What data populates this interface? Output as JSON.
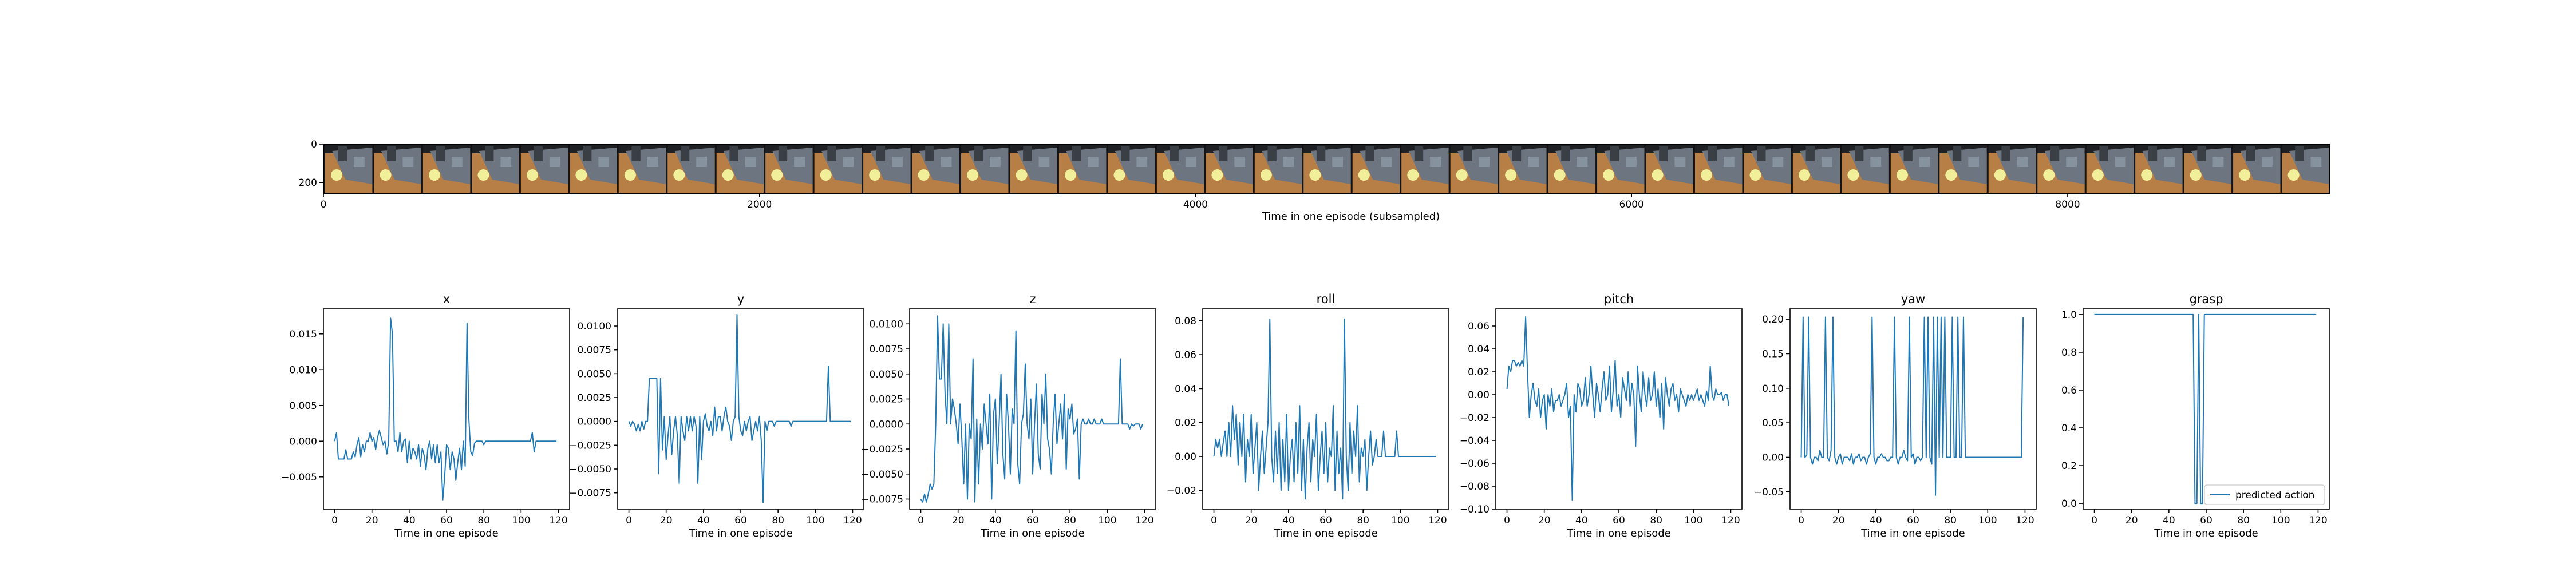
{
  "strip": {
    "xlabel": "Time in one episode (subsampled)",
    "xticks": [
      0,
      2000,
      4000,
      6000,
      8000
    ],
    "yticks": [
      0,
      200
    ],
    "xlim": [
      0,
      9200
    ],
    "ylim": [
      0,
      256
    ],
    "frame_count": 41,
    "colors": {
      "floor": "#b77e46",
      "wall": "#6c7580",
      "dark": "#1e2024",
      "ball": "#f1ef9a"
    }
  },
  "chart_data": [
    {
      "type": "line",
      "title": "x",
      "xlabel": "Time in one episode",
      "xticks": [
        0,
        20,
        40,
        60,
        80,
        100,
        120
      ],
      "yticks": [
        -0.005,
        0.0,
        0.005,
        0.01,
        0.015
      ],
      "ytick_labels": [
        "−0.005",
        "0.000",
        "0.005",
        "0.010",
        "0.015"
      ],
      "xlim": [
        -6,
        126
      ],
      "ylim": [
        -0.0095,
        0.0185
      ],
      "y": [
        0.0,
        0.0012,
        -0.0025,
        -0.0025,
        -0.0025,
        -0.0025,
        -0.0012,
        -0.0025,
        -0.0025,
        -0.0025,
        -0.0015,
        -0.0022,
        -0.0005,
        0.0005,
        -0.0022,
        -0.0005,
        -0.0015,
        0.0,
        0.0,
        0.0012,
        0.0,
        0.0005,
        -0.0012,
        0.0005,
        0.0015,
        0.0005,
        -0.0005,
        0.0,
        -0.0018,
        0.0,
        0.0172,
        0.015,
        0.0,
        0.0,
        -0.0015,
        0.0012,
        -0.0015,
        0.0,
        0.0003,
        -0.003,
        0.0,
        -0.0025,
        -0.001,
        -0.0015,
        -0.0025,
        -0.0005,
        -0.0035,
        -0.001,
        -0.002,
        -0.004,
        -0.001,
        0.0,
        -0.0025,
        -0.0005,
        -0.003,
        -0.0005,
        -0.003,
        -0.0015,
        -0.0082,
        -0.005,
        -0.0005,
        -0.001,
        -0.004,
        -0.0015,
        -0.0025,
        -0.0055,
        -0.003,
        -0.001,
        -0.004,
        0.0,
        -0.0035,
        0.0165,
        0.003,
        -0.0015,
        -0.002,
        -0.0003,
        0.0,
        0.0,
        0.0,
        0.0,
        -0.0005,
        0.0,
        0.0,
        0.0,
        0.0,
        0.0,
        0.0,
        0.0,
        0.0,
        0.0,
        0.0,
        0.0,
        0.0,
        0.0,
        0.0,
        0.0,
        0.0,
        0.0,
        0.0,
        0.0,
        0.0,
        0.0,
        0.0,
        0.0,
        0.0,
        0.0,
        0.0012,
        -0.0015,
        0.0,
        0.0,
        0.0,
        0.0,
        0.0,
        0.0,
        0.0,
        0.0,
        0.0,
        0.0,
        0.0,
        0.0
      ]
    },
    {
      "type": "line",
      "title": "y",
      "xlabel": "Time in one episode",
      "xticks": [
        0,
        20,
        40,
        60,
        80,
        100,
        120
      ],
      "yticks": [
        -0.0075,
        -0.005,
        -0.0025,
        0.0,
        0.0025,
        0.005,
        0.0075,
        0.01
      ],
      "ytick_labels": [
        "−0.0075",
        "−0.0050",
        "−0.0025",
        "0.0000",
        "0.0025",
        "0.0050",
        "0.0075",
        "0.0100"
      ],
      "xlim": [
        -6,
        126
      ],
      "ylim": [
        -0.0092,
        0.0118
      ],
      "y": [
        0.0,
        -0.0005,
        0.0,
        -0.0003,
        -0.001,
        -0.0003,
        -0.001,
        0.0,
        -0.0008,
        0.0,
        0.0,
        0.0045,
        0.0045,
        0.0045,
        0.0045,
        0.0045,
        -0.0055,
        0.0045,
        -0.003,
        0.0005,
        -0.004,
        -0.0015,
        0.0005,
        -0.0035,
        -0.001,
        0.0005,
        -0.0015,
        -0.0065,
        0.0005,
        -0.001,
        -0.002,
        0.0005,
        -0.001,
        0.0005,
        -0.001,
        0.0005,
        -0.0005,
        -0.0065,
        0.0005,
        -0.004,
        0.0,
        0.0008,
        -0.0005,
        -0.001,
        0.0,
        -0.0015,
        0.0015,
        -0.001,
        0.0005,
        0.0005,
        -0.001,
        0.0005,
        0.0015,
        0.0,
        -0.0005,
        -0.002,
        0.0,
        0.0005,
        0.0112,
        0.0005,
        -0.001,
        -0.0015,
        0.0,
        -0.001,
        0.0,
        0.0005,
        -0.002,
        -0.001,
        0.0,
        -0.001,
        0.0005,
        -0.002,
        -0.0085,
        0.0,
        -0.001,
        0.0,
        0.0,
        0.0,
        -0.0005,
        0.0,
        0.0,
        0.0,
        0.0,
        0.0,
        0.0,
        0.0,
        0.0,
        -0.0005,
        0.0,
        0.0,
        0.0,
        0.0,
        0.0,
        0.0,
        0.0,
        0.0,
        0.0,
        0.0,
        0.0,
        0.0,
        0.0,
        0.0,
        0.0,
        0.0,
        0.0,
        0.0,
        0.0,
        0.0058,
        0.0,
        0.0,
        0.0,
        0.0,
        0.0,
        0.0,
        0.0,
        0.0,
        0.0,
        0.0,
        0.0,
        0.0
      ]
    },
    {
      "type": "line",
      "title": "z",
      "xlabel": "Time in one episode",
      "xticks": [
        0,
        20,
        40,
        60,
        80,
        100,
        120
      ],
      "yticks": [
        -0.0075,
        -0.005,
        -0.0025,
        0.0,
        0.0025,
        0.005,
        0.0075,
        0.01
      ],
      "ytick_labels": [
        "−0.0075",
        "−0.0050",
        "−0.0025",
        "0.0000",
        "0.0025",
        "0.0050",
        "0.0075",
        "0.0100"
      ],
      "xlim": [
        -6,
        126
      ],
      "ylim": [
        -0.0085,
        0.0115
      ],
      "y": [
        -0.0075,
        -0.0078,
        -0.007,
        -0.0078,
        -0.007,
        -0.006,
        -0.0065,
        -0.006,
        0.0,
        0.0108,
        0.0045,
        0.0045,
        0.01,
        0.003,
        0.0,
        0.01,
        0.0,
        0.0025,
        0.0015,
        0.0,
        -0.002,
        0.002,
        -0.0015,
        -0.006,
        0.0,
        -0.0075,
        0.0,
        -0.0015,
        0.0065,
        -0.0078,
        0.0005,
        -0.006,
        0.0,
        -0.0025,
        0.002,
        0.0,
        -0.002,
        0.003,
        -0.0075,
        0.001,
        0.0025,
        -0.004,
        0.0,
        0.005,
        -0.003,
        -0.0055,
        0.003,
        0.0,
        -0.005,
        0.0015,
        0.0,
        0.0093,
        -0.004,
        -0.006,
        0.0,
        0.001,
        0.006,
        0.0,
        -0.0015,
        0.0025,
        -0.005,
        0.0,
        0.004,
        -0.003,
        -0.0045,
        0.003,
        0.0,
        0.005,
        -0.0015,
        -0.0025,
        -0.005,
        0.0,
        0.003,
        -0.002,
        0.0,
        0.002,
        -0.0015,
        0.003,
        -0.0045,
        0.0015,
        0.0005,
        0.002,
        -0.001,
        -0.0005,
        0.0005,
        -0.0055,
        0.0,
        0.0005,
        0.0,
        0.0,
        0.0005,
        0.0,
        0.0,
        0.0005,
        0.0,
        0.0,
        0.0,
        0.0005,
        0.0,
        0.0,
        0.0,
        0.0,
        0.0,
        0.0,
        0.0,
        0.0,
        0.0,
        0.0065,
        0.0,
        0.0,
        0.0,
        0.0,
        -0.0005,
        0.0,
        -0.0002,
        0.0,
        0.0,
        0.0,
        -0.0005,
        0.0
      ]
    },
    {
      "type": "line",
      "title": "roll",
      "xlabel": "Time in one episode",
      "xticks": [
        0,
        20,
        40,
        60,
        80,
        100,
        120
      ],
      "yticks": [
        -0.02,
        0.0,
        0.02,
        0.04,
        0.06,
        0.08
      ],
      "ytick_labels": [
        "−0.02",
        "0.00",
        "0.02",
        "0.04",
        "0.06",
        "0.08"
      ],
      "xlim": [
        -6,
        126
      ],
      "ylim": [
        -0.031,
        0.087
      ],
      "y": [
        0.0,
        0.01,
        0.005,
        0.01,
        0.0,
        0.008,
        0.015,
        0.0,
        0.02,
        0.0,
        0.03,
        0.01,
        0.025,
        -0.005,
        0.02,
        0.0,
        0.025,
        -0.015,
        0.01,
        0.0,
        0.025,
        -0.01,
        0.005,
        0.02,
        -0.02,
        0.0,
        0.015,
        -0.01,
        0.005,
        0.02,
        0.081,
        0.0,
        -0.015,
        0.015,
        -0.01,
        0.02,
        -0.02,
        0.01,
        -0.015,
        0.025,
        -0.02,
        0.0,
        0.01,
        -0.015,
        0.02,
        -0.01,
        0.03,
        -0.02,
        0.01,
        -0.025,
        0.005,
        0.02,
        -0.015,
        0.01,
        0.0,
        0.025,
        -0.02,
        0.0,
        0.015,
        -0.01,
        0.02,
        -0.015,
        0.005,
        0.0,
        0.03,
        -0.02,
        0.015,
        -0.01,
        0.005,
        -0.025,
        0.081,
        0.0,
        -0.02,
        0.02,
        -0.01,
        0.015,
        0.0,
        0.03,
        -0.015,
        0.005,
        0.0,
        0.01,
        -0.02,
        0.0,
        0.015,
        -0.005,
        0.0,
        0.01,
        0.0,
        0.0,
        0.0,
        0.015,
        0.0,
        0.0,
        0.0,
        0.0,
        0.0,
        0.0,
        0.015,
        0.0,
        0.0,
        0.0,
        0.0,
        0.0,
        0.0,
        0.0,
        0.0,
        0.0,
        0.0,
        0.0,
        0.0,
        0.0,
        0.0,
        0.0,
        0.0,
        0.0,
        0.0,
        0.0,
        0.0,
        0.0
      ]
    },
    {
      "type": "line",
      "title": "pitch",
      "xlabel": "Time in one episode",
      "xticks": [
        0,
        20,
        40,
        60,
        80,
        100,
        120
      ],
      "yticks": [
        -0.1,
        -0.08,
        -0.06,
        -0.04,
        -0.02,
        0.0,
        0.02,
        0.04,
        0.06
      ],
      "ytick_labels": [
        "−0.10",
        "−0.08",
        "−0.06",
        "−0.04",
        "−0.02",
        "0.00",
        "0.02",
        "0.04",
        "0.06"
      ],
      "xlim": [
        -6,
        126
      ],
      "ylim": [
        -0.1,
        0.075
      ],
      "y": [
        0.005,
        0.025,
        0.02,
        0.03,
        0.03,
        0.025,
        0.028,
        0.025,
        0.03,
        0.025,
        0.068,
        0.02,
        -0.02,
        0.0,
        0.01,
        -0.005,
        -0.01,
        0.005,
        -0.02,
        -0.005,
        0.0,
        -0.03,
        0.0,
        -0.01,
        0.005,
        -0.015,
        -0.005,
        -0.005,
        0.0,
        -0.01,
        -0.005,
        0.0,
        0.01,
        -0.02,
        -0.01,
        -0.092,
        0.0,
        -0.015,
        0.01,
        0.005,
        -0.01,
        -0.005,
        0.015,
        -0.01,
        0.0,
        0.025,
        0.0,
        -0.02,
        0.01,
        0.0,
        -0.015,
        0.005,
        0.02,
        -0.005,
        0.0,
        0.025,
        -0.015,
        0.005,
        0.03,
        -0.01,
        0.0,
        -0.02,
        0.015,
        0.005,
        -0.005,
        0.02,
        -0.01,
        0.01,
        0.0,
        -0.045,
        0.025,
        0.0,
        -0.015,
        0.02,
        0.0,
        -0.01,
        0.015,
        -0.005,
        0.0,
        0.02,
        -0.01,
        0.005,
        -0.02,
        0.01,
        -0.03,
        0.015,
        0.0,
        -0.01,
        0.005,
        0.01,
        -0.005,
        0.0,
        -0.015,
        0.005,
        0.0,
        -0.005,
        -0.01,
        0.0,
        -0.005,
        0.0,
        -0.005,
        0.0,
        0.005,
        -0.005,
        0.0,
        -0.005,
        -0.01,
        0.003,
        -0.005,
        0.025,
        0.0,
        -0.005,
        0.005,
        0.0,
        0.0,
        0.002,
        -0.005,
        0.0,
        0.0,
        -0.01
      ]
    },
    {
      "type": "line",
      "title": "yaw",
      "xlabel": "Time in one episode",
      "xticks": [
        0,
        20,
        40,
        60,
        80,
        100,
        120
      ],
      "yticks": [
        -0.05,
        0.0,
        0.05,
        0.1,
        0.15,
        0.2
      ],
      "ytick_labels": [
        "−0.05",
        "0.00",
        "0.05",
        "0.10",
        "0.15",
        "0.20"
      ],
      "xlim": [
        -6,
        126
      ],
      "ylim": [
        -0.075,
        0.215
      ],
      "y": [
        0.0,
        0.203,
        0.0,
        0.003,
        0.203,
        0.0,
        -0.01,
        0.0,
        0.0,
        -0.005,
        0.01,
        0.0,
        0.0,
        0.203,
        0.0,
        -0.005,
        0.01,
        0.203,
        0.0,
        -0.01,
        0.0,
        0.005,
        -0.01,
        0.0,
        0.0,
        0.0,
        -0.005,
        0.005,
        -0.01,
        0.0,
        0.0,
        0.005,
        -0.005,
        0.0,
        0.0,
        -0.01,
        0.0,
        0.005,
        0.203,
        0.0,
        -0.01,
        0.0,
        0.0,
        0.005,
        0.0,
        0.0,
        -0.005,
        -0.005,
        0.0,
        0.0,
        0.203,
        0.0,
        -0.01,
        0.0,
        0.0,
        0.01,
        0.0,
        -0.005,
        0.203,
        0.0,
        0.005,
        -0.01,
        0.0,
        0.0,
        -0.005,
        0.0,
        0.203,
        0.0,
        0.203,
        0.0,
        -0.01,
        0.203,
        -0.055,
        0.203,
        0.0,
        0.203,
        0.0,
        0.203,
        0.0,
        0.0,
        0.0,
        0.203,
        0.0,
        0.0,
        0.203,
        0.0,
        0.0,
        0.203,
        0.0,
        0.0,
        0.0,
        0.0,
        0.0,
        0.0,
        0.0,
        0.0,
        0.0,
        0.0,
        0.0,
        0.0,
        0.0,
        0.0,
        0.0,
        0.0,
        0.0,
        0.0,
        0.0,
        0.0,
        0.0,
        0.0,
        0.0,
        0.0,
        0.0,
        0.0,
        0.0,
        0.0,
        0.0,
        0.0,
        0.0,
        0.203
      ]
    },
    {
      "type": "line",
      "title": "grasp",
      "xlabel": "Time in one episode",
      "xticks": [
        0,
        20,
        40,
        60,
        80,
        100,
        120
      ],
      "yticks": [
        0.0,
        0.2,
        0.4,
        0.6,
        0.8,
        1.0
      ],
      "ytick_labels": [
        "0.0",
        "0.2",
        "0.4",
        "0.6",
        "0.8",
        "1.0"
      ],
      "xlim": [
        -6,
        126
      ],
      "ylim": [
        -0.03,
        1.03
      ],
      "legend": {
        "label": "predicted action",
        "position": "lower-right"
      },
      "y": [
        1,
        1,
        1,
        1,
        1,
        1,
        1,
        1,
        1,
        1,
        1,
        1,
        1,
        1,
        1,
        1,
        1,
        1,
        1,
        1,
        1,
        1,
        1,
        1,
        1,
        1,
        1,
        1,
        1,
        1,
        1,
        1,
        1,
        1,
        1,
        1,
        1,
        1,
        1,
        1,
        1,
        1,
        1,
        1,
        1,
        1,
        1,
        1,
        1,
        1,
        1,
        1,
        1,
        1,
        0,
        0,
        1,
        0,
        0,
        1,
        1,
        1,
        1,
        1,
        1,
        1,
        1,
        1,
        1,
        1,
        1,
        1,
        1,
        1,
        1,
        1,
        1,
        1,
        1,
        1,
        1,
        1,
        1,
        1,
        1,
        1,
        1,
        1,
        1,
        1,
        1,
        1,
        1,
        1,
        1,
        1,
        1,
        1,
        1,
        1,
        1,
        1,
        1,
        1,
        1,
        1,
        1,
        1,
        1,
        1,
        1,
        1,
        1,
        1,
        1,
        1,
        1,
        1,
        1,
        1
      ]
    }
  ]
}
